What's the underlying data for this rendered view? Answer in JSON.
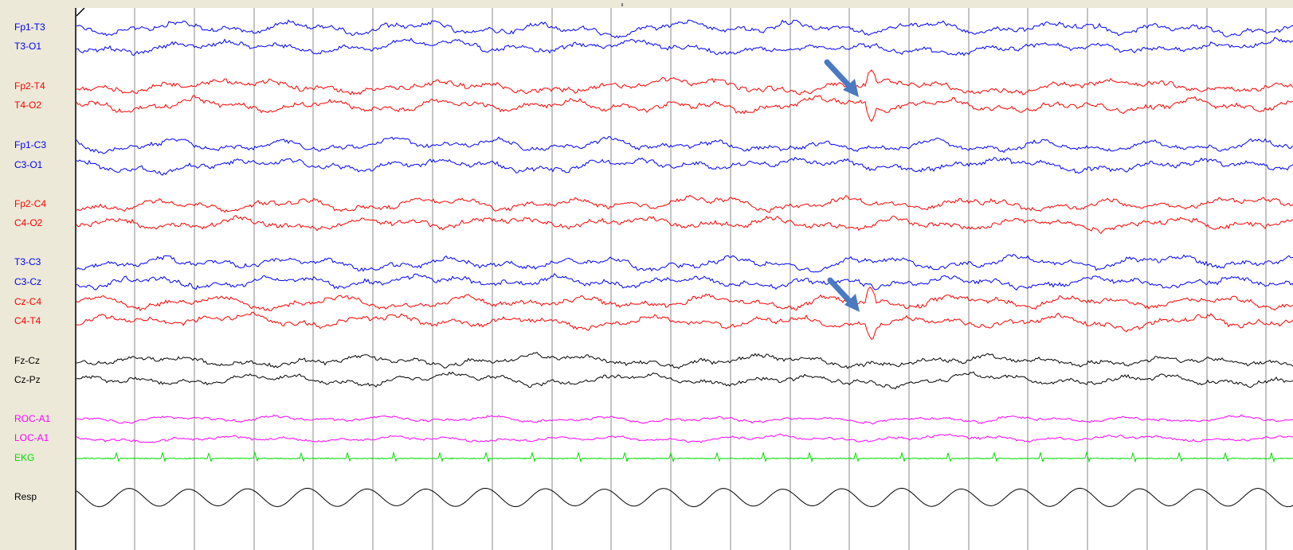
{
  "channels": [
    {
      "label": "Fp1-T3",
      "color": "#0000ff"
    },
    {
      "label": "T3-O1",
      "color": "#0000ff"
    },
    {
      "label": "Fp2-T4",
      "color": "#ff0000"
    },
    {
      "label": "T4-O2",
      "color": "#ff0000"
    },
    {
      "label": "Fp1-C3",
      "color": "#0000ff"
    },
    {
      "label": "C3-O1",
      "color": "#0000ff"
    },
    {
      "label": "Fp2-C4",
      "color": "#ff0000"
    },
    {
      "label": "C4-O2",
      "color": "#ff0000"
    },
    {
      "label": "T3-C3",
      "color": "#0000ff"
    },
    {
      "label": "C3-Cz",
      "color": "#0000ff"
    },
    {
      "label": "Cz-C4",
      "color": "#ff0000"
    },
    {
      "label": "C4-T4",
      "color": "#ff0000"
    },
    {
      "label": "Fz-Cz",
      "color": "#000000"
    },
    {
      "label": "Cz-Pz",
      "color": "#000000"
    },
    {
      "label": "ROC-A1",
      "color": "#ff00ff"
    },
    {
      "label": "LOC-A1",
      "color": "#ff00ff"
    },
    {
      "label": "EKG",
      "color": "#00dd00"
    },
    {
      "label": "Resp",
      "color": "#000000"
    }
  ],
  "colors": {
    "background": "#ece9d8",
    "plot_background": "#ffffff",
    "grid_line": "#8a8a8a",
    "annotation_arrow": "#4a7ac0"
  }
}
